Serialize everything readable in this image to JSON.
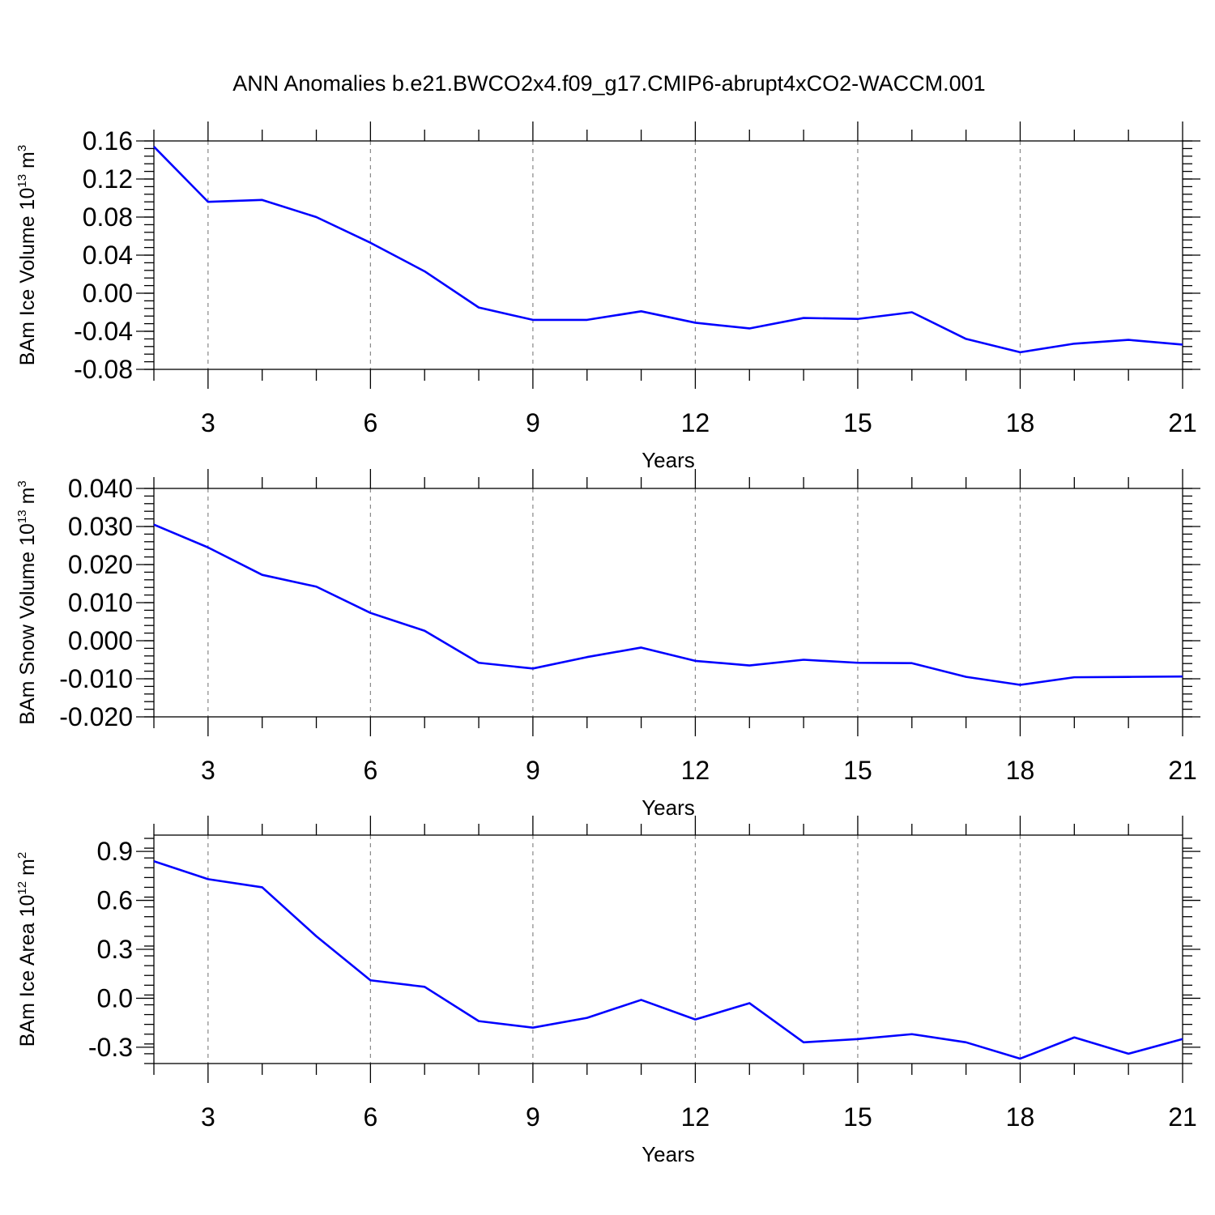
{
  "title": "ANN Anomalies b.e21.BWCO2x4.f09_g17.CMIP6-abrupt4xCO2-WACCM.001",
  "colors": {
    "line": "#0000ff",
    "grid": "#888888",
    "axes": "#000000"
  },
  "chart_data": [
    {
      "type": "line",
      "ylabel_main": "BAm Ice Volume 10",
      "ylabel_sup": "13",
      "ylabel_unit": " m",
      "ylabel_unit_sup": "3",
      "xlabel": "Years",
      "xlim": [
        2,
        21
      ],
      "ylim": [
        -0.08,
        0.16
      ],
      "yticks": [
        -0.08,
        -0.04,
        0.0,
        0.04,
        0.08,
        0.12,
        0.16
      ],
      "ytick_labels": [
        "-0.08",
        "-0.04",
        "0.00",
        "0.04",
        "0.08",
        "0.12",
        "0.16"
      ],
      "yminor_step": 0.008,
      "xticks": [
        3,
        6,
        9,
        12,
        15,
        18,
        21
      ],
      "xtick_labels": [
        "3",
        "6",
        "9",
        "12",
        "15",
        "18",
        "21"
      ],
      "grid_x": true,
      "series": [
        {
          "name": "BAm Ice Volume",
          "x": [
            2,
            3,
            4,
            5,
            6,
            7,
            8,
            9,
            10,
            11,
            12,
            13,
            14,
            15,
            16,
            17,
            18,
            19,
            20,
            21
          ],
          "values": [
            0.154,
            0.096,
            0.098,
            0.08,
            0.053,
            0.023,
            -0.015,
            -0.028,
            -0.028,
            -0.019,
            -0.031,
            -0.037,
            -0.026,
            -0.027,
            -0.02,
            -0.048,
            -0.062,
            -0.053,
            -0.049,
            -0.054
          ]
        }
      ]
    },
    {
      "type": "line",
      "ylabel_main": "BAm Snow Volume 10",
      "ylabel_sup": "13",
      "ylabel_unit": " m",
      "ylabel_unit_sup": "3",
      "xlabel": "Years",
      "xlim": [
        2,
        21
      ],
      "ylim": [
        -0.02,
        0.04
      ],
      "yticks": [
        -0.02,
        -0.01,
        0.0,
        0.01,
        0.02,
        0.03,
        0.04
      ],
      "ytick_labels": [
        "-0.020",
        "-0.010",
        "0.000",
        "0.010",
        "0.020",
        "0.030",
        "0.040"
      ],
      "yminor_step": 0.002,
      "xticks": [
        3,
        6,
        9,
        12,
        15,
        18,
        21
      ],
      "xtick_labels": [
        "3",
        "6",
        "9",
        "12",
        "15",
        "18",
        "21"
      ],
      "grid_x": true,
      "series": [
        {
          "name": "BAm Snow Volume",
          "x": [
            2,
            3,
            4,
            5,
            6,
            7,
            8,
            9,
            10,
            11,
            12,
            13,
            14,
            15,
            16,
            17,
            18,
            19,
            20,
            21
          ],
          "values": [
            0.0305,
            0.0245,
            0.0173,
            0.0142,
            0.0073,
            0.0026,
            -0.0058,
            -0.0073,
            -0.0043,
            -0.0018,
            -0.0053,
            -0.0065,
            -0.005,
            -0.0058,
            -0.0059,
            -0.0095,
            -0.0116,
            -0.0096,
            -0.0095,
            -0.0094
          ]
        }
      ]
    },
    {
      "type": "line",
      "ylabel_main": "BAm Ice Area 10",
      "ylabel_sup": "12",
      "ylabel_unit": " m",
      "ylabel_unit_sup": "2",
      "xlabel": "Years",
      "xlim": [
        2,
        21
      ],
      "ylim": [
        -0.4,
        1.0
      ],
      "yticks": [
        -0.3,
        0.0,
        0.3,
        0.6,
        0.9
      ],
      "ytick_labels": [
        "-0.3",
        "0.0",
        "0.3",
        "0.6",
        "0.9"
      ],
      "yminor_step": 0.06,
      "xticks": [
        3,
        6,
        9,
        12,
        15,
        18,
        21
      ],
      "xtick_labels": [
        "3",
        "6",
        "9",
        "12",
        "15",
        "18",
        "21"
      ],
      "grid_x": true,
      "series": [
        {
          "name": "BAm Ice Area",
          "x": [
            2,
            3,
            4,
            5,
            6,
            7,
            8,
            9,
            10,
            11,
            12,
            13,
            14,
            15,
            16,
            17,
            18,
            19,
            20,
            21
          ],
          "values": [
            0.84,
            0.73,
            0.68,
            0.38,
            0.11,
            0.07,
            -0.14,
            -0.18,
            -0.12,
            -0.01,
            -0.13,
            -0.03,
            -0.27,
            -0.25,
            -0.22,
            -0.27,
            -0.37,
            -0.24,
            -0.34,
            -0.25
          ]
        }
      ]
    }
  ]
}
